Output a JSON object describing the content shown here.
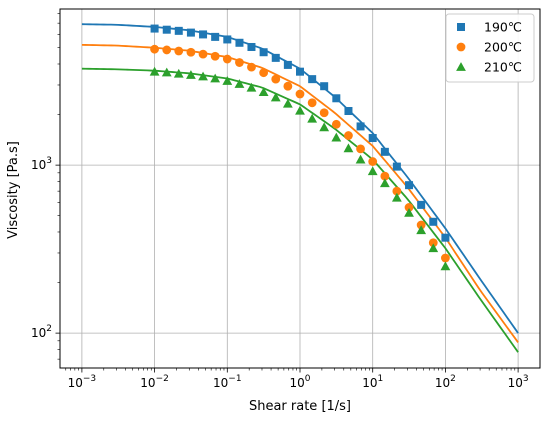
{
  "chart_data": {
    "type": "scatter",
    "title": "",
    "xlabel": "Shear rate [1/s]",
    "ylabel": "Viscosity [Pa.s]",
    "xscale": "log",
    "yscale": "log",
    "xlim": [
      0.0005,
      2000
    ],
    "ylim": [
      62,
      8500
    ],
    "grid": true,
    "legend_position": "top-right",
    "x_ticks": [
      {
        "value": 0.001,
        "base": "10",
        "exp": "−3"
      },
      {
        "value": 0.01,
        "base": "10",
        "exp": "−2"
      },
      {
        "value": 0.1,
        "base": "10",
        "exp": "−1"
      },
      {
        "value": 1,
        "base": "10",
        "exp": "0"
      },
      {
        "value": 10,
        "base": "10",
        "exp": "1"
      },
      {
        "value": 100,
        "base": "10",
        "exp": "2"
      },
      {
        "value": 1000,
        "base": "10",
        "exp": "3"
      }
    ],
    "y_ticks": [
      {
        "value": 100,
        "base": "10",
        "exp": "2"
      },
      {
        "value": 1000,
        "base": "10",
        "exp": "3"
      }
    ],
    "series": [
      {
        "name": "190℃",
        "color": "#1f77b4",
        "marker": "square",
        "points": [
          [
            0.01,
            6500
          ],
          [
            0.0147,
            6400
          ],
          [
            0.0215,
            6300
          ],
          [
            0.0316,
            6150
          ],
          [
            0.0464,
            6000
          ],
          [
            0.0681,
            5800
          ],
          [
            0.1,
            5600
          ],
          [
            0.147,
            5350
          ],
          [
            0.215,
            5050
          ],
          [
            0.316,
            4700
          ],
          [
            0.464,
            4350
          ],
          [
            0.681,
            3950
          ],
          [
            1.0,
            3600
          ],
          [
            1.47,
            3250
          ],
          [
            2.15,
            2950
          ],
          [
            3.16,
            2500
          ],
          [
            4.64,
            2100
          ],
          [
            6.81,
            1700
          ],
          [
            10.0,
            1450
          ],
          [
            14.7,
            1200
          ],
          [
            21.5,
            980
          ],
          [
            31.6,
            760
          ],
          [
            46.4,
            580
          ],
          [
            68.1,
            460
          ],
          [
            100,
            370
          ]
        ],
        "fit": [
          [
            0.001,
            6900
          ],
          [
            0.003,
            6850
          ],
          [
            0.01,
            6650
          ],
          [
            0.03,
            6350
          ],
          [
            0.1,
            5800
          ],
          [
            0.3,
            4950
          ],
          [
            1.0,
            3750
          ],
          [
            3.0,
            2550
          ],
          [
            10.0,
            1550
          ],
          [
            30.0,
            850
          ],
          [
            100,
            420
          ],
          [
            300,
            210
          ],
          [
            1000,
            100
          ]
        ]
      },
      {
        "name": "200℃",
        "color": "#ff7f0e",
        "marker": "circle",
        "points": [
          [
            0.01,
            4900
          ],
          [
            0.0147,
            4850
          ],
          [
            0.0215,
            4780
          ],
          [
            0.0316,
            4700
          ],
          [
            0.0464,
            4580
          ],
          [
            0.0681,
            4450
          ],
          [
            0.1,
            4280
          ],
          [
            0.147,
            4080
          ],
          [
            0.215,
            3830
          ],
          [
            0.316,
            3550
          ],
          [
            0.464,
            3250
          ],
          [
            0.681,
            2950
          ],
          [
            1.0,
            2650
          ],
          [
            1.47,
            2350
          ],
          [
            2.15,
            2050
          ],
          [
            3.16,
            1750
          ],
          [
            4.64,
            1500
          ],
          [
            6.81,
            1250
          ],
          [
            10.0,
            1050
          ],
          [
            14.7,
            860
          ],
          [
            21.5,
            700
          ],
          [
            31.6,
            560
          ],
          [
            46.4,
            440
          ],
          [
            68.1,
            345
          ],
          [
            100,
            280
          ]
        ],
        "fit": [
          [
            0.001,
            5200
          ],
          [
            0.003,
            5150
          ],
          [
            0.01,
            5000
          ],
          [
            0.03,
            4800
          ],
          [
            0.1,
            4400
          ],
          [
            0.3,
            3800
          ],
          [
            1.0,
            2950
          ],
          [
            3.0,
            2050
          ],
          [
            10.0,
            1300
          ],
          [
            30.0,
            740
          ],
          [
            100,
            370
          ],
          [
            300,
            180
          ],
          [
            1000,
            88
          ]
        ]
      },
      {
        "name": "210℃",
        "color": "#2ca02c",
        "marker": "triangle",
        "points": [
          [
            0.01,
            3600
          ],
          [
            0.0147,
            3560
          ],
          [
            0.0215,
            3500
          ],
          [
            0.0316,
            3440
          ],
          [
            0.0464,
            3370
          ],
          [
            0.0681,
            3280
          ],
          [
            0.1,
            3170
          ],
          [
            0.147,
            3040
          ],
          [
            0.215,
            2890
          ],
          [
            0.316,
            2720
          ],
          [
            0.464,
            2530
          ],
          [
            0.681,
            2320
          ],
          [
            1.0,
            2110
          ],
          [
            1.47,
            1890
          ],
          [
            2.15,
            1680
          ],
          [
            3.16,
            1460
          ],
          [
            4.64,
            1260
          ],
          [
            6.81,
            1080
          ],
          [
            10.0,
            920
          ],
          [
            14.7,
            780
          ],
          [
            21.5,
            640
          ],
          [
            31.6,
            520
          ],
          [
            46.4,
            410
          ],
          [
            68.1,
            320
          ],
          [
            100,
            250
          ]
        ],
        "fit": [
          [
            0.001,
            3750
          ],
          [
            0.003,
            3720
          ],
          [
            0.01,
            3650
          ],
          [
            0.03,
            3520
          ],
          [
            0.1,
            3280
          ],
          [
            0.3,
            2900
          ],
          [
            1.0,
            2300
          ],
          [
            3.0,
            1650
          ],
          [
            10.0,
            1080
          ],
          [
            30.0,
            630
          ],
          [
            100,
            320
          ],
          [
            300,
            160
          ],
          [
            1000,
            77
          ]
        ]
      }
    ]
  }
}
